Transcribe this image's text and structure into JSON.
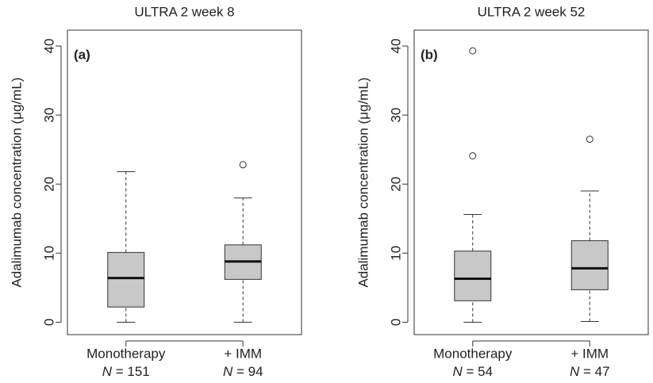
{
  "chart_data": [
    {
      "type": "box",
      "title": "ULTRA 2 week 8",
      "panel_label": "(a)",
      "y_label": "Adalimumab concentration (μg/mL)",
      "categories": [
        "Monotherapy",
        "+ IMM"
      ],
      "n_labels": [
        "N = 151",
        "N = 94"
      ],
      "box_color": "#c8c8c8",
      "boxes": [
        {
          "whislo": 0,
          "q1": 2.2,
          "med": 6.4,
          "q3": 10.1,
          "whishi": 21.8,
          "fliers": []
        },
        {
          "whislo": 0,
          "q1": 6.2,
          "med": 8.8,
          "q3": 11.2,
          "whishi": 18.0,
          "fliers": [
            22.8
          ]
        }
      ],
      "ylim": [
        -1.8,
        42.3
      ],
      "yticks": [
        0,
        10,
        20,
        30,
        40
      ]
    },
    {
      "type": "box",
      "title": "ULTRA 2 week 52",
      "panel_label": "(b)",
      "y_label": "Adalimumab concentration (μg/mL)",
      "categories": [
        "Monotherapy",
        "+ IMM"
      ],
      "n_labels": [
        "N = 54",
        "N = 47"
      ],
      "box_color": "#c8c8c8",
      "boxes": [
        {
          "whislo": 0,
          "q1": 3.1,
          "med": 6.3,
          "q3": 10.3,
          "whishi": 15.6,
          "fliers": [
            24.1,
            39.3
          ]
        },
        {
          "whislo": 0.1,
          "q1": 4.7,
          "med": 7.8,
          "q3": 11.8,
          "whishi": 19.0,
          "fliers": [
            26.5
          ]
        }
      ],
      "ylim": [
        -1.8,
        42.3
      ],
      "yticks": [
        0,
        10,
        20,
        30,
        40
      ]
    }
  ]
}
